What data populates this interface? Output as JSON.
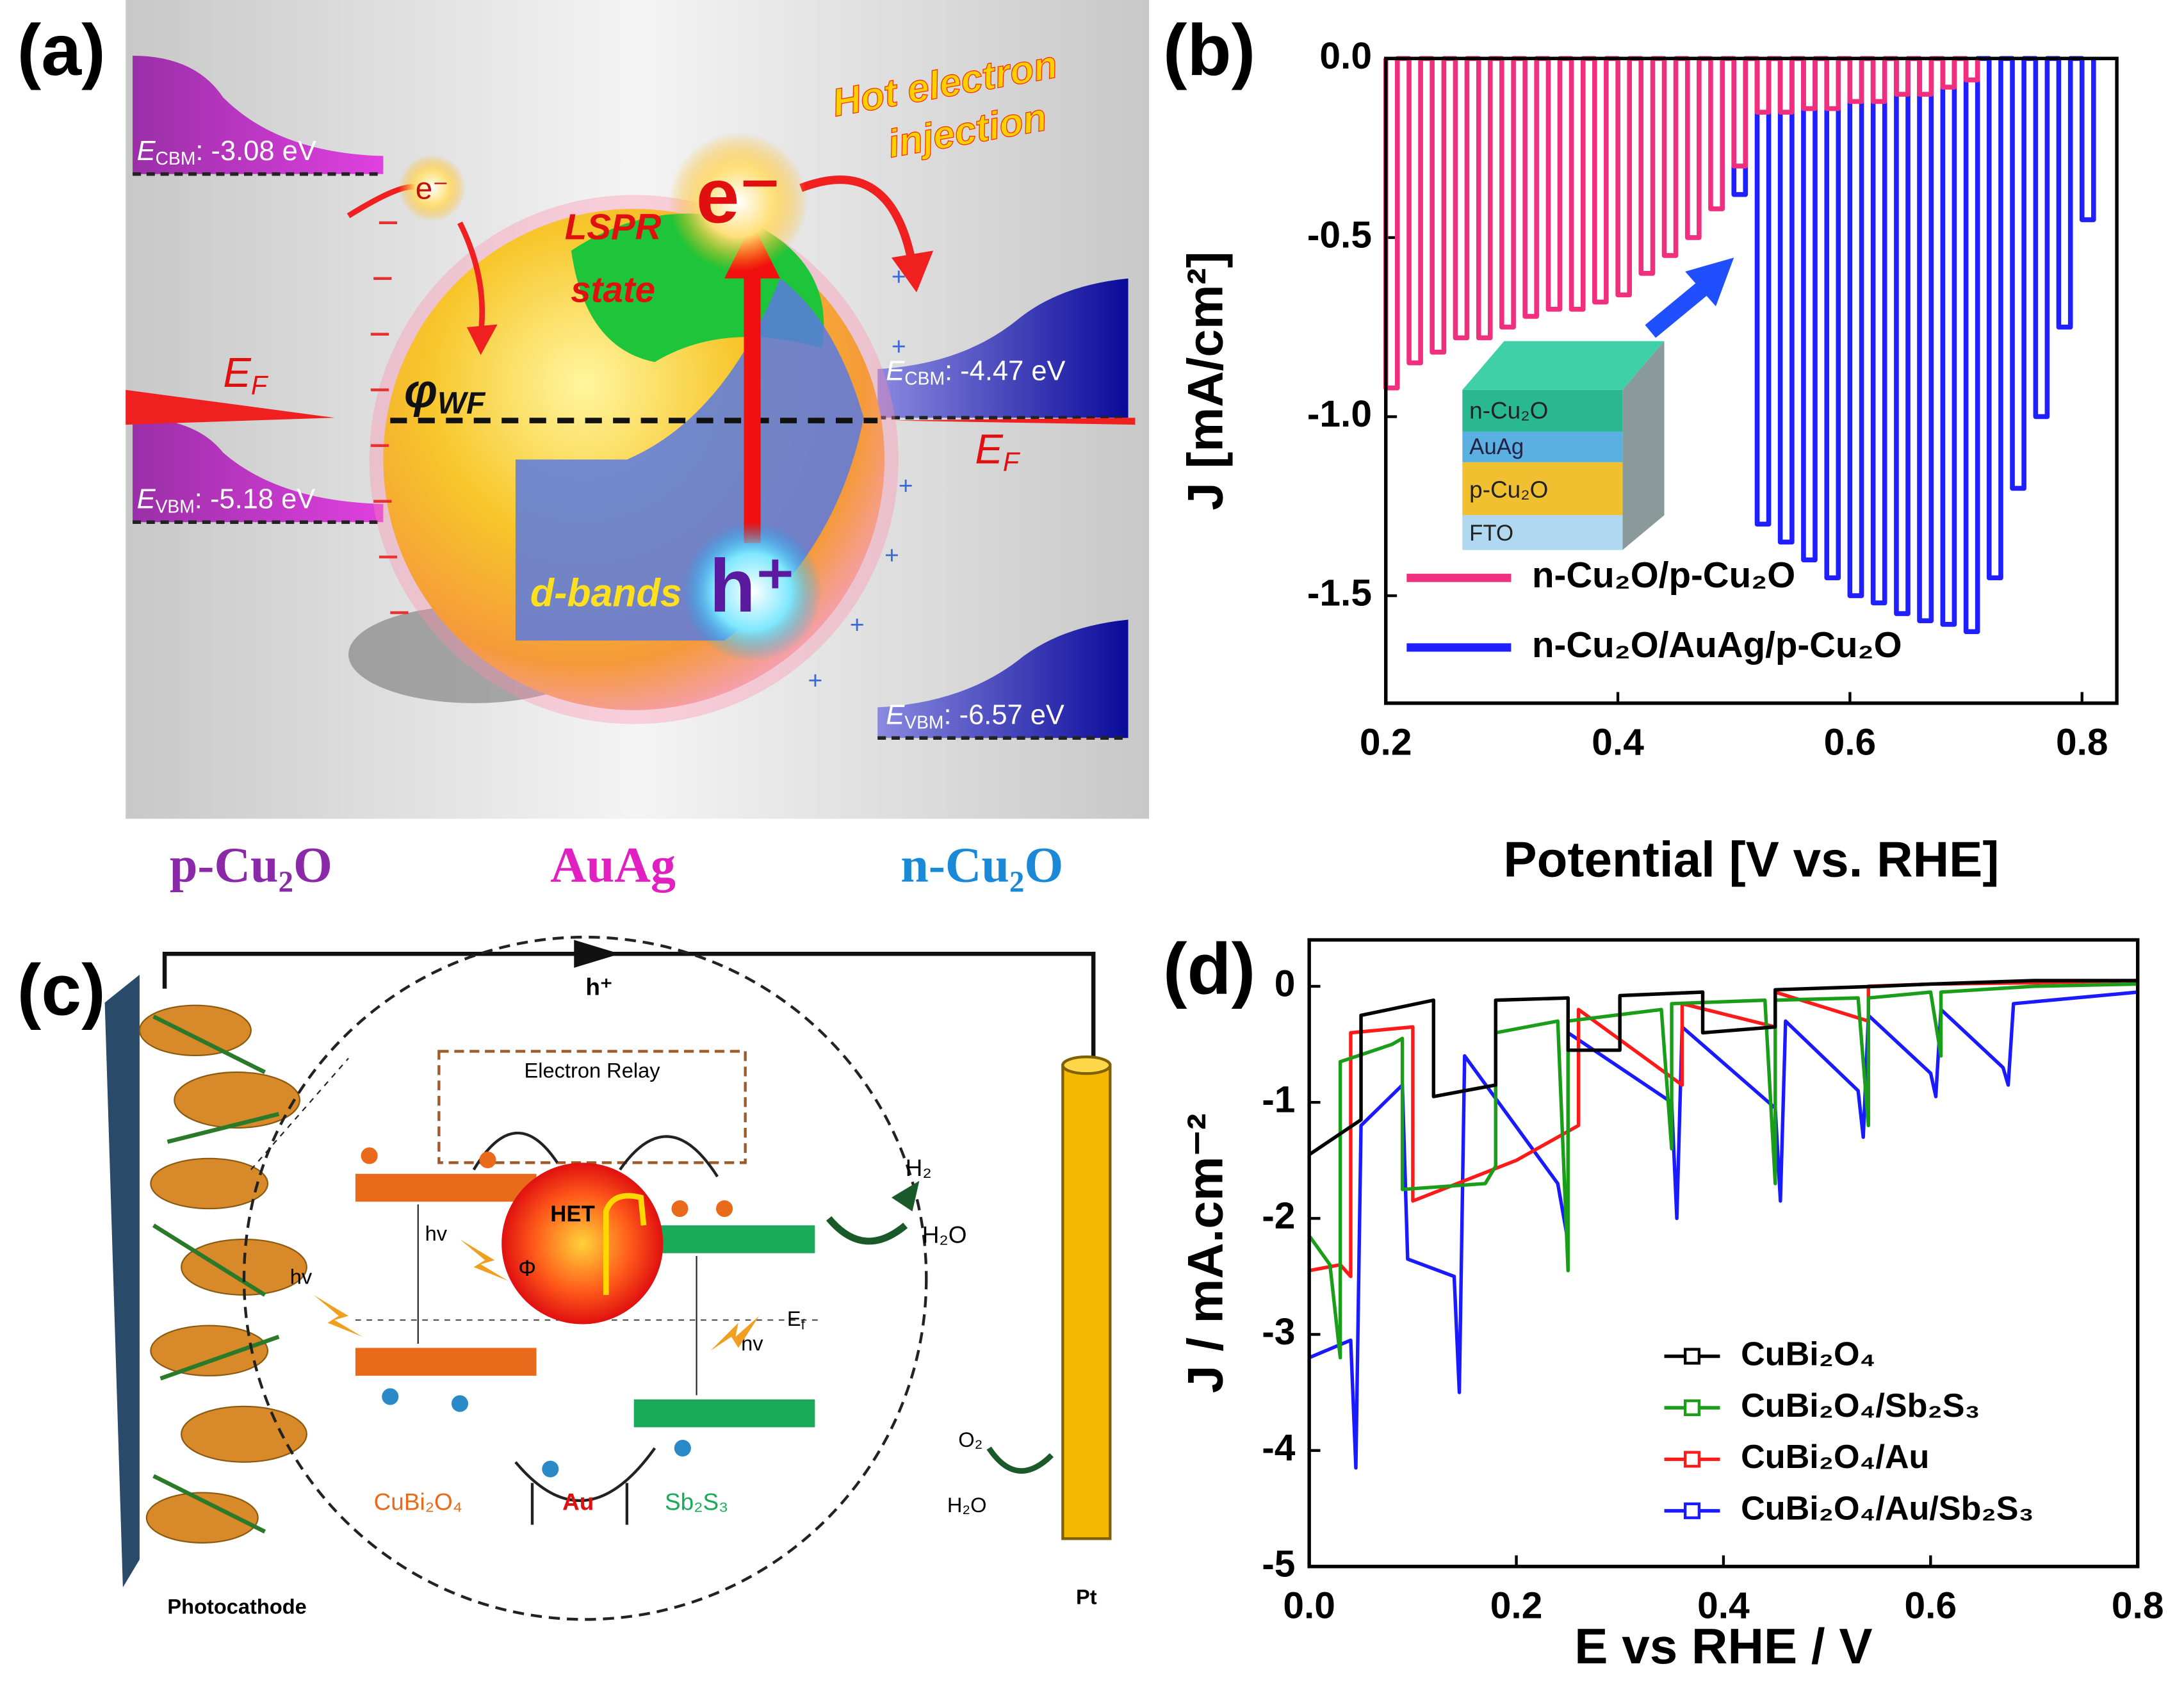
{
  "panel_labels": [
    "(a)",
    "(b)",
    "(c)",
    "(d)"
  ],
  "diagram_a": {
    "levels": [
      {
        "main": "E",
        "sub": "CBM",
        "text": ": -3.08 eV"
      },
      {
        "main": "E",
        "sub": "VBM",
        "text": ": -5.18 eV"
      },
      {
        "main": "E",
        "sub": "CBM",
        "text": ": -4.47 eV"
      },
      {
        "main": "E",
        "sub": "VBM",
        "text": ": -6.57 eV"
      }
    ],
    "fermi_left": {
      "main": "E",
      "sub": "F"
    },
    "fermi_right": {
      "main": "E",
      "sub": "F"
    },
    "work_function": {
      "main": "φ",
      "sub": "WF"
    },
    "hot_electron": [
      "Hot electron",
      "injection"
    ],
    "lspr": [
      "LSPR",
      "state"
    ],
    "d_bands": "d-bands",
    "electron_small": "e⁻",
    "electron": "e⁻",
    "hole": "h⁺",
    "materials": [
      "p-Cu₂O",
      "AuAg",
      "n-Cu₂O"
    ]
  },
  "diagram_c": {
    "hole_top": "h⁺",
    "relay": "Electron Relay",
    "h2": "H₂",
    "h2o_right": "H₂O",
    "o2": "O₂",
    "h2o_left": "H₂O",
    "het": "HET",
    "phi": "Φ",
    "hv": [
      "hv",
      "hv",
      "hv"
    ],
    "fermi": {
      "main": "E",
      "sub": "f"
    },
    "materials": [
      "CuBi₂O₄",
      "Au",
      "Sb₂S₃"
    ],
    "photocathode": "Photocathode",
    "pt": "Pt"
  },
  "chart_data": [
    {
      "type": "line",
      "xlabel": "Potential [V vs. RHE]",
      "ylabel": "J [mA/cm²]",
      "xlim": [
        0.2,
        0.83
      ],
      "ylim": [
        -1.8,
        0
      ],
      "xticks": [
        0.2,
        0.4,
        0.6,
        0.8
      ],
      "yticks": [
        {
          "value": 0,
          "label": "0.0"
        },
        -0.5,
        {
          "value": -1,
          "label": "-1.0"
        },
        -1.5
      ],
      "legend": "lower left",
      "inset_labels": [
        "n-Cu₂O",
        "AuAg",
        "p-Cu₂O",
        "FTO"
      ],
      "series": [
        {
          "name": "n-Cu₂O/p-Cu₂O",
          "color": "#f0307f",
          "x": [
            0.2,
            0.2,
            0.21,
            0.21,
            0.22,
            0.22,
            0.23,
            0.23,
            0.24,
            0.24,
            0.25,
            0.25,
            0.26,
            0.26,
            0.27,
            0.27,
            0.28,
            0.28,
            0.29,
            0.29,
            0.3,
            0.3,
            0.31,
            0.31,
            0.32,
            0.32,
            0.33,
            0.33,
            0.34,
            0.34,
            0.35,
            0.35,
            0.36,
            0.36,
            0.37,
            0.37,
            0.38,
            0.38,
            0.39,
            0.39,
            0.4,
            0.4,
            0.41,
            0.41,
            0.42,
            0.42,
            0.43,
            0.43,
            0.44,
            0.44,
            0.45,
            0.45,
            0.46,
            0.46,
            0.47,
            0.47,
            0.48,
            0.48,
            0.49,
            0.49,
            0.5,
            0.5,
            0.51,
            0.51,
            0.52,
            0.52,
            0.53,
            0.53,
            0.54,
            0.54,
            0.55,
            0.55,
            0.56,
            0.56,
            0.57,
            0.57,
            0.58,
            0.58,
            0.59,
            0.59,
            0.6,
            0.6,
            0.61,
            0.61,
            0.62,
            0.62,
            0.63,
            0.63,
            0.64,
            0.64,
            0.65,
            0.65,
            0.66,
            0.66,
            0.67,
            0.67,
            0.68,
            0.68,
            0.69,
            0.69,
            0.7,
            0.7,
            0.71,
            0.71
          ],
          "values": [
            0,
            -0.92,
            -0.92,
            0,
            0,
            -0.85,
            -0.85,
            0,
            0,
            -0.82,
            -0.82,
            0,
            0,
            -0.78,
            -0.78,
            0,
            0,
            -0.78,
            -0.78,
            0,
            0,
            -0.75,
            -0.75,
            0,
            0,
            -0.72,
            -0.72,
            0,
            0,
            -0.7,
            -0.7,
            0,
            0,
            -0.7,
            -0.7,
            0,
            0,
            -0.68,
            -0.68,
            0,
            0,
            -0.66,
            -0.66,
            0,
            0,
            -0.6,
            -0.6,
            0,
            0,
            -0.55,
            -0.55,
            0,
            0,
            -0.5,
            -0.5,
            0,
            0,
            -0.42,
            -0.42,
            0,
            0,
            -0.3,
            -0.3,
            0,
            0,
            -0.15,
            -0.15,
            0,
            0,
            -0.15,
            -0.15,
            0,
            0,
            -0.14,
            -0.14,
            0,
            0,
            -0.14,
            -0.14,
            0,
            0,
            -0.12,
            -0.12,
            0,
            0,
            -0.12,
            -0.12,
            0,
            0,
            -0.1,
            -0.1,
            0,
            0,
            -0.1,
            -0.1,
            0,
            0,
            -0.08,
            -0.08,
            0,
            0,
            -0.06,
            -0.06,
            0
          ]
        },
        {
          "name": "n-Cu₂O/AuAg/p-Cu₂O",
          "color": "#1f1fff",
          "x": [
            0.5,
            0.5,
            0.51,
            0.51,
            0.52,
            0.52,
            0.53,
            0.53,
            0.54,
            0.54,
            0.55,
            0.55,
            0.56,
            0.56,
            0.57,
            0.57,
            0.58,
            0.58,
            0.59,
            0.59,
            0.6,
            0.6,
            0.61,
            0.61,
            0.62,
            0.62,
            0.63,
            0.63,
            0.64,
            0.64,
            0.65,
            0.65,
            0.66,
            0.66,
            0.67,
            0.67,
            0.68,
            0.68,
            0.69,
            0.69,
            0.7,
            0.7,
            0.71,
            0.71,
            0.72,
            0.72,
            0.73,
            0.73,
            0.74,
            0.74,
            0.75,
            0.75,
            0.76,
            0.76,
            0.77,
            0.77,
            0.78,
            0.78,
            0.79,
            0.79,
            0.8,
            0.8,
            0.81,
            0.81
          ],
          "values": [
            0,
            -0.38,
            -0.38,
            0,
            0,
            -1.3,
            -1.3,
            0,
            0,
            -1.35,
            -1.35,
            0,
            0,
            -1.4,
            -1.4,
            0,
            0,
            -1.45,
            -1.45,
            0,
            0,
            -1.5,
            -1.5,
            0,
            0,
            -1.52,
            -1.52,
            0,
            0,
            -1.55,
            -1.55,
            0,
            0,
            -1.57,
            -1.57,
            0,
            0,
            -1.58,
            -1.58,
            0,
            0,
            -1.6,
            -1.6,
            0,
            0,
            -1.45,
            -1.45,
            0,
            0,
            -1.2,
            -1.2,
            0,
            0,
            -1,
            -1,
            0,
            0,
            -0.75,
            -0.75,
            0,
            0,
            -0.45,
            -0.45,
            0
          ]
        }
      ]
    },
    {
      "type": "line",
      "xlabel": "E vs RHE / V",
      "ylabel": "J / mA.cm⁻²",
      "xlim": [
        0,
        0.8
      ],
      "ylim": [
        -5,
        0.4
      ],
      "xticks": [
        {
          "value": 0,
          "label": "0.0"
        },
        0.2,
        0.4,
        0.6,
        0.8
      ],
      "yticks": [
        -5,
        -4,
        -3,
        -2,
        -1,
        0
      ],
      "legend": "lower right",
      "markers": "square",
      "series": [
        {
          "name": "CuBi₂O₄",
          "color": "#000000",
          "x": [
            0,
            0.05,
            0.05,
            0.12,
            0.12,
            0.18,
            0.18,
            0.25,
            0.25,
            0.3,
            0.3,
            0.38,
            0.38,
            0.45,
            0.45,
            0.55,
            0.6,
            0.7,
            0.8
          ],
          "values": [
            -1.45,
            -1.15,
            -0.25,
            -0.12,
            -0.95,
            -0.85,
            -0.12,
            -0.1,
            -0.55,
            -0.55,
            -0.08,
            -0.05,
            -0.4,
            -0.35,
            -0.03,
            0,
            0.02,
            0.05,
            0.05
          ]
        },
        {
          "name": "CuBi₂O₄/Sb₂S₃",
          "color": "#1a9e1a",
          "x": [
            0,
            0.02,
            0.03,
            0.03,
            0.08,
            0.09,
            0.09,
            0.17,
            0.18,
            0.18,
            0.24,
            0.25,
            0.25,
            0.34,
            0.35,
            0.35,
            0.44,
            0.45,
            0.45,
            0.53,
            0.54,
            0.54,
            0.6,
            0.61,
            0.61,
            0.7,
            0.8
          ],
          "values": [
            -2.15,
            -2.4,
            -3.2,
            -0.65,
            -0.5,
            -0.45,
            -1.75,
            -1.7,
            -1.55,
            -0.4,
            -0.3,
            -2.45,
            -0.3,
            -0.2,
            -1.4,
            -0.15,
            -0.12,
            -1.7,
            -0.12,
            -0.1,
            -1.2,
            -0.1,
            -0.05,
            -0.6,
            -0.05,
            0,
            0.02
          ]
        },
        {
          "name": "CuBi₂O₄/Au",
          "color": "#ff1a1a",
          "x": [
            0,
            0.03,
            0.04,
            0.04,
            0.1,
            0.1,
            0.2,
            0.26,
            0.26,
            0.36,
            0.36,
            0.45,
            0.45,
            0.54,
            0.54,
            0.6,
            0.7,
            0.8
          ],
          "values": [
            -2.45,
            -2.4,
            -2.5,
            -0.4,
            -0.35,
            -1.85,
            -1.5,
            -1.2,
            -0.2,
            -0.85,
            -0.15,
            -0.35,
            -0.05,
            -0.3,
            0,
            0.02,
            0.03,
            0.05
          ]
        },
        {
          "name": "CuBi₂O₄/Au/Sb₂S₃",
          "color": "#1a1aff",
          "x": [
            0,
            0.04,
            0.045,
            0.05,
            0.09,
            0.095,
            0.14,
            0.145,
            0.15,
            0.24,
            0.25,
            0.25,
            0.35,
            0.355,
            0.36,
            0.45,
            0.455,
            0.46,
            0.53,
            0.535,
            0.54,
            0.6,
            0.605,
            0.61,
            0.67,
            0.675,
            0.68,
            0.8
          ],
          "values": [
            -3.2,
            -3.05,
            -4.15,
            -1.2,
            -0.85,
            -2.35,
            -2.5,
            -3.5,
            -0.6,
            -1.7,
            -2.2,
            -0.4,
            -1,
            -2,
            -0.35,
            -1.05,
            -1.85,
            -0.3,
            -0.9,
            -1.3,
            -0.25,
            -0.75,
            -0.95,
            -0.2,
            -0.7,
            -0.85,
            -0.15,
            -0.05
          ]
        }
      ]
    }
  ]
}
